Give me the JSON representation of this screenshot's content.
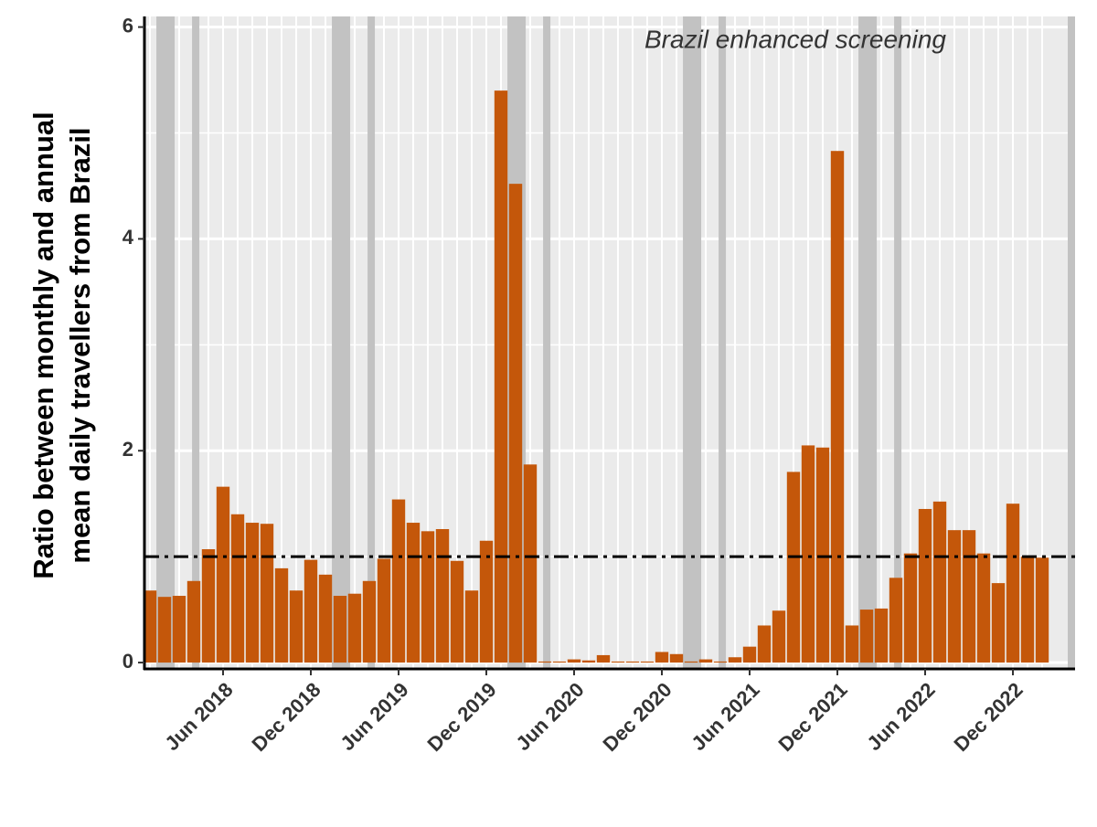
{
  "chart_data": {
    "type": "bar",
    "ylabel": [
      "Ratio between monthly and annual",
      "mean daily travellers from Brazil"
    ],
    "annotation": "Brazil enhanced screening",
    "categories": [
      null,
      null,
      null,
      null,
      null,
      "Jun 2018",
      null,
      null,
      null,
      null,
      null,
      "Dec 2018",
      null,
      null,
      null,
      null,
      null,
      "Jun 2019",
      null,
      null,
      null,
      null,
      null,
      "Dec 2019",
      null,
      null,
      null,
      null,
      null,
      "Jun 2020",
      null,
      null,
      null,
      null,
      null,
      "Dec 2020",
      null,
      null,
      null,
      null,
      null,
      "Jun 2021",
      null,
      null,
      null,
      null,
      null,
      "Dec 2021",
      null,
      null,
      null,
      null,
      null,
      "Jun 2022",
      null,
      null,
      null,
      null,
      null,
      "Dec 2022",
      null,
      null
    ],
    "values": [
      0.68,
      0.62,
      0.63,
      0.77,
      1.07,
      1.66,
      1.4,
      1.32,
      1.31,
      0.89,
      0.68,
      0.97,
      0.83,
      0.63,
      0.65,
      0.77,
      0.98,
      1.54,
      1.32,
      1.24,
      1.26,
      0.96,
      0.68,
      1.15,
      5.4,
      4.52,
      1.87,
      0.01,
      0.01,
      0.03,
      0.02,
      0.07,
      0.01,
      0.01,
      0.01,
      0.1,
      0.08,
      0.01,
      0.03,
      0.01,
      0.05,
      0.15,
      0.35,
      0.49,
      1.8,
      2.05,
      2.03,
      4.83,
      0.35,
      0.5,
      0.51,
      0.8,
      1.03,
      1.45,
      1.52,
      1.25,
      1.25,
      1.03,
      0.75,
      1.5,
      1.0,
      0.99
    ],
    "color": "#c4570a",
    "shaded_ranges": [
      [
        0.44,
        1.69
      ],
      [
        2.88,
        3.38
      ],
      [
        12.44,
        13.69
      ],
      [
        14.88,
        15.38
      ],
      [
        24.44,
        25.69
      ],
      [
        26.88,
        27.38
      ],
      [
        36.44,
        37.69
      ],
      [
        38.88,
        39.38
      ],
      [
        48.44,
        49.69
      ],
      [
        50.88,
        51.38
      ],
      [
        62.75,
        63.25
      ]
    ],
    "shade_color": "#c2c2c2",
    "reference_line": 1,
    "xlim": [
      -0.375,
      63.25
    ],
    "ylim": [
      -0.06,
      6.1
    ],
    "yticks": [
      0,
      2,
      4,
      6
    ],
    "y_minor_grid": [
      1,
      3,
      5
    ],
    "grid": true
  }
}
